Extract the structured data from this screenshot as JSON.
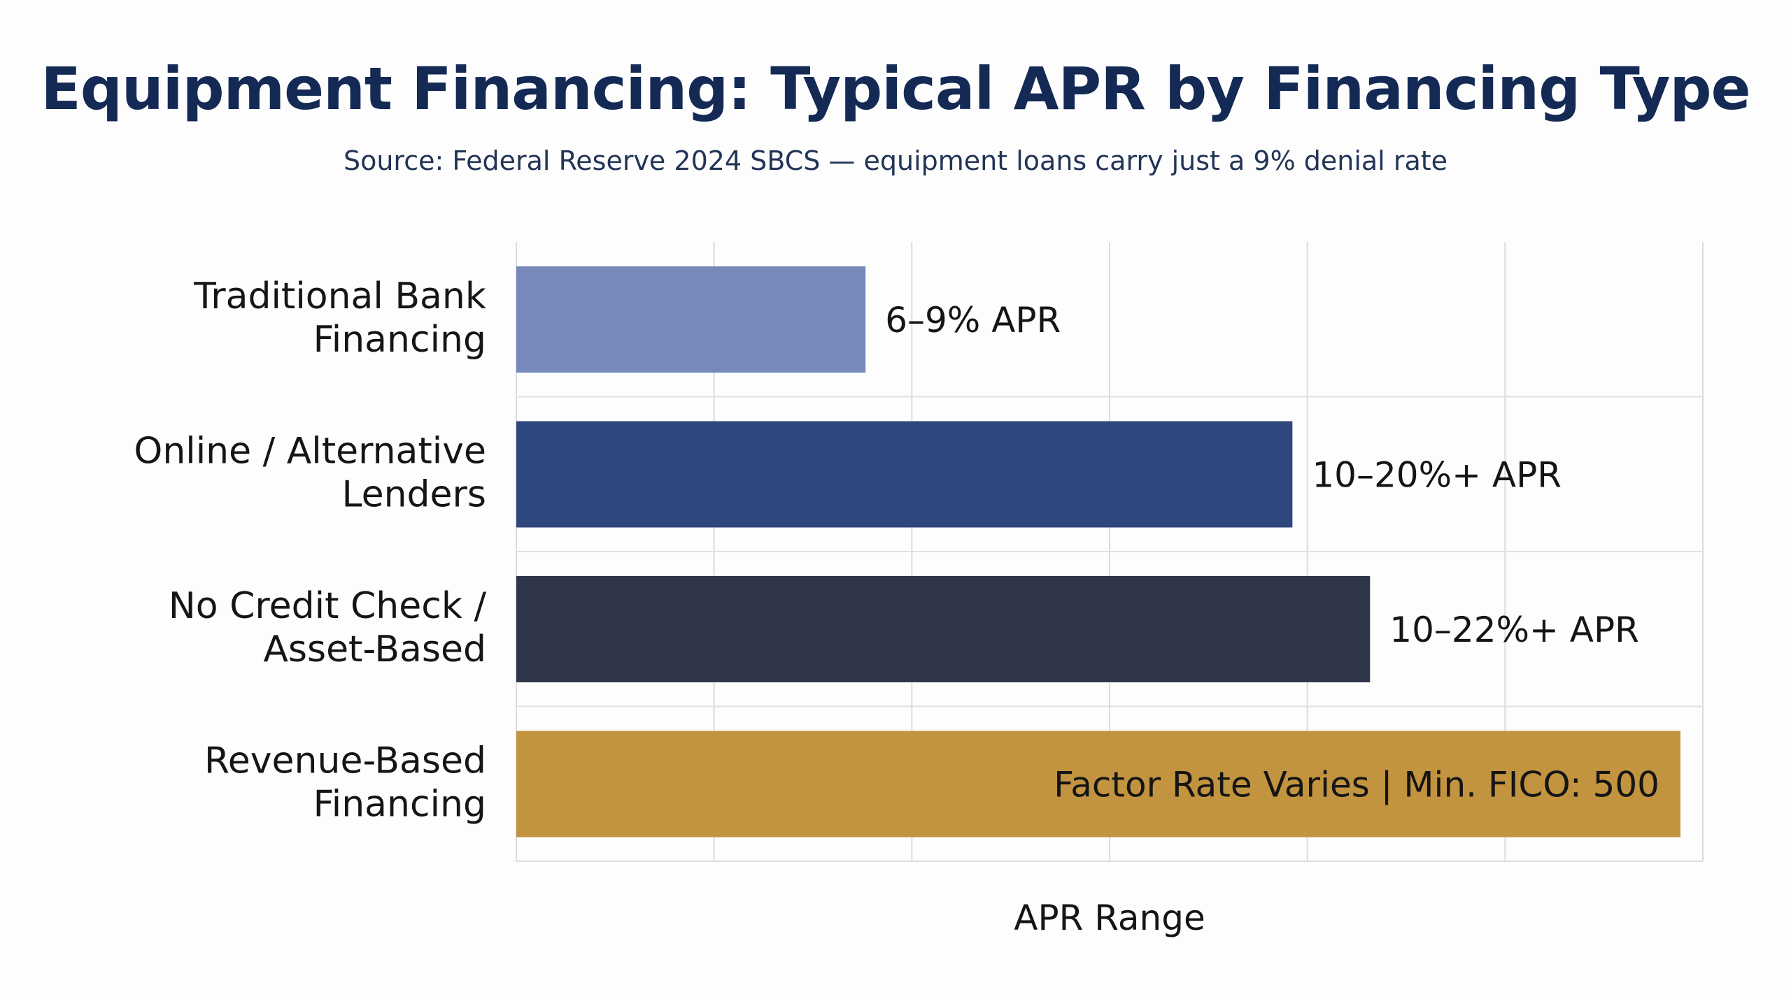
{
  "chart_data": {
    "type": "bar",
    "orientation": "horizontal",
    "title": "Equipment Financing: Typical APR by Financing Type",
    "subtitle": "Source: Federal Reserve 2024 SBCS — equipment loans carry just a 9% denial rate",
    "xlabel": "APR Range",
    "ylabel": "",
    "grid": true,
    "categories": [
      [
        "Traditional Bank",
        "Financing"
      ],
      [
        "Online / Alternative",
        "Lenders"
      ],
      [
        "No Credit Check /",
        "Asset-Based"
      ],
      [
        "Revenue-Based",
        "Financing"
      ]
    ],
    "values": [
      9,
      20,
      22,
      30
    ],
    "xlim": [
      0,
      30
    ],
    "data_labels": [
      "6–9% APR",
      "10–20%+ APR",
      "10–22%+ APR",
      "Factor Rate Varies | Min. FICO: 500"
    ],
    "colors": [
      "#7689ba",
      "#2e477c",
      "#303649",
      "#c39440"
    ],
    "label_inside": [
      false,
      false,
      false,
      true
    ]
  }
}
